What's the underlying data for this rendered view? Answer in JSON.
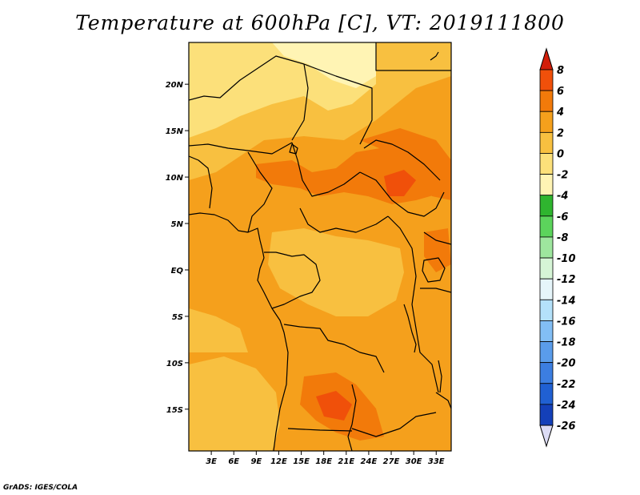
{
  "title": "Temperature at 600hPa [C], VT: 2019111800",
  "credit": "GrADS: IGES/COLA",
  "map": {
    "variable": "Temperature at 600hPa",
    "units": "C",
    "valid_time": "2019111800",
    "lat_range": [
      -19.5,
      24.5
    ],
    "lon_range": [
      0,
      35
    ],
    "lat_ticks": [
      {
        "value": 20,
        "label": "20N"
      },
      {
        "value": 15,
        "label": "15N"
      },
      {
        "value": 10,
        "label": "10N"
      },
      {
        "value": 5,
        "label": "5N"
      },
      {
        "value": 0,
        "label": "EQ"
      },
      {
        "value": -5,
        "label": "5S"
      },
      {
        "value": -10,
        "label": "10S"
      },
      {
        "value": -15,
        "label": "15S"
      }
    ],
    "lon_ticks": [
      {
        "value": 3,
        "label": "3E"
      },
      {
        "value": 6,
        "label": "6E"
      },
      {
        "value": 9,
        "label": "9E"
      },
      {
        "value": 12,
        "label": "12E"
      },
      {
        "value": 15,
        "label": "15E"
      },
      {
        "value": 18,
        "label": "18E"
      },
      {
        "value": 21,
        "label": "21E"
      },
      {
        "value": 24,
        "label": "24E"
      },
      {
        "value": 27,
        "label": "27E"
      },
      {
        "value": 30,
        "label": "30E"
      },
      {
        "value": 33,
        "label": "33E"
      }
    ]
  },
  "colorbar": {
    "levels": [
      "8",
      "6",
      "4",
      "2",
      "0",
      "-2",
      "-4",
      "-6",
      "-8",
      "-10",
      "-12",
      "-14",
      "-16",
      "-18",
      "-20",
      "-22",
      "-24",
      "-26"
    ],
    "colors": [
      "#e8220a",
      "#f0500a",
      "#f27a0a",
      "#f5a01c",
      "#f8c040",
      "#fce07a",
      "#fff4b4",
      "#2fb52f",
      "#5cd45c",
      "#9ee69e",
      "#d6f5d6",
      "#e6f5fa",
      "#b4e1fa",
      "#82bef5",
      "#5a9ceb",
      "#3c7ee1",
      "#2060d2",
      "#1440b9",
      "#0a1e96"
    ],
    "over_color": "#d21e0a",
    "under_color": "#dcdcf5"
  }
}
